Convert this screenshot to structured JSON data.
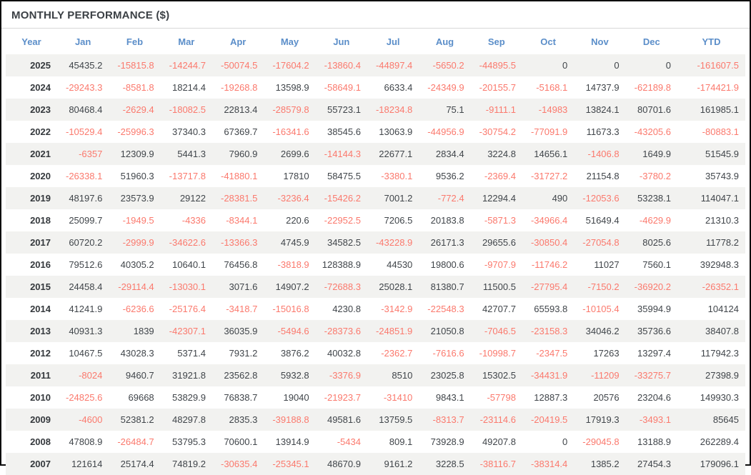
{
  "panel": {
    "title": "MONTHLY PERFORMANCE ($)"
  },
  "colors": {
    "header_blue": "#5b8ec9",
    "negative_red": "#fb796d",
    "value_dark": "#40454a",
    "stripe_gray": "#f2f2f0",
    "title_dark": "#3b4045"
  },
  "table": {
    "columns": [
      "Year",
      "Jan",
      "Feb",
      "Mar",
      "Apr",
      "May",
      "Jun",
      "Jul",
      "Aug",
      "Sep",
      "Oct",
      "Nov",
      "Dec",
      "YTD"
    ],
    "rows": [
      {
        "year": "2025",
        "values": [
          "45435.2",
          "-15815.8",
          "-14244.7",
          "-50074.5",
          "-17604.2",
          "-13860.4",
          "-44897.4",
          "-5650.2",
          "-44895.5",
          "0",
          "0",
          "0",
          "-161607.5"
        ]
      },
      {
        "year": "2024",
        "values": [
          "-29243.3",
          "-8581.8",
          "18214.4",
          "-19268.8",
          "13598.9",
          "-58649.1",
          "6633.4",
          "-24349.9",
          "-20155.7",
          "-5168.1",
          "14737.9",
          "-62189.8",
          "-174421.9"
        ]
      },
      {
        "year": "2023",
        "values": [
          "80468.4",
          "-2629.4",
          "-18082.5",
          "22813.4",
          "-28579.8",
          "55723.1",
          "-18234.8",
          "75.1",
          "-9111.1",
          "-14983",
          "13824.1",
          "80701.6",
          "161985.1"
        ]
      },
      {
        "year": "2022",
        "values": [
          "-10529.4",
          "-25996.3",
          "37340.3",
          "67369.7",
          "-16341.6",
          "38545.6",
          "13063.9",
          "-44956.9",
          "-30754.2",
          "-77091.9",
          "11673.3",
          "-43205.6",
          "-80883.1"
        ]
      },
      {
        "year": "2021",
        "values": [
          "-6357",
          "12309.9",
          "5441.3",
          "7960.9",
          "2699.6",
          "-14144.3",
          "22677.1",
          "2834.4",
          "3224.8",
          "14656.1",
          "-1406.8",
          "1649.9",
          "51545.9"
        ]
      },
      {
        "year": "2020",
        "values": [
          "-26338.1",
          "51960.3",
          "-13717.8",
          "-41880.1",
          "17810",
          "58475.5",
          "-3380.1",
          "9536.2",
          "-2369.4",
          "-31727.2",
          "21154.8",
          "-3780.2",
          "35743.9"
        ]
      },
      {
        "year": "2019",
        "values": [
          "48197.6",
          "23573.9",
          "29122",
          "-28381.5",
          "-3236.4",
          "-15426.2",
          "7001.2",
          "-772.4",
          "12294.4",
          "490",
          "-12053.6",
          "53238.1",
          "114047.1"
        ]
      },
      {
        "year": "2018",
        "values": [
          "25099.7",
          "-1949.5",
          "-4336",
          "-8344.1",
          "220.6",
          "-22952.5",
          "7206.5",
          "20183.8",
          "-5871.3",
          "-34966.4",
          "51649.4",
          "-4629.9",
          "21310.3"
        ]
      },
      {
        "year": "2017",
        "values": [
          "60720.2",
          "-2999.9",
          "-34622.6",
          "-13366.3",
          "4745.9",
          "34582.5",
          "-43228.9",
          "26171.3",
          "29655.6",
          "-30850.4",
          "-27054.8",
          "8025.6",
          "11778.2"
        ]
      },
      {
        "year": "2016",
        "values": [
          "79512.6",
          "40305.2",
          "10640.1",
          "76456.8",
          "-3818.9",
          "128388.9",
          "44530",
          "19800.6",
          "-9707.9",
          "-11746.2",
          "11027",
          "7560.1",
          "392948.3"
        ]
      },
      {
        "year": "2015",
        "values": [
          "24458.4",
          "-29114.4",
          "-13030.1",
          "3071.6",
          "14907.2",
          "-72688.3",
          "25028.1",
          "81380.7",
          "11500.5",
          "-27795.4",
          "-7150.2",
          "-36920.2",
          "-26352.1"
        ]
      },
      {
        "year": "2014",
        "values": [
          "41241.9",
          "-6236.6",
          "-25176.4",
          "-3418.7",
          "-15016.8",
          "4230.8",
          "-3142.9",
          "-22548.3",
          "42707.7",
          "65593.8",
          "-10105.4",
          "35994.9",
          "104124"
        ]
      },
      {
        "year": "2013",
        "values": [
          "40931.3",
          "1839",
          "-42307.1",
          "36035.9",
          "-5494.6",
          "-28373.6",
          "-24851.9",
          "21050.8",
          "-7046.5",
          "-23158.3",
          "34046.2",
          "35736.6",
          "38407.8"
        ]
      },
      {
        "year": "2012",
        "values": [
          "10467.5",
          "43028.3",
          "5371.4",
          "7931.2",
          "3876.2",
          "40032.8",
          "-2362.7",
          "-7616.6",
          "-10998.7",
          "-2347.5",
          "17263",
          "13297.4",
          "117942.3"
        ]
      },
      {
        "year": "2011",
        "values": [
          "-8024",
          "9460.7",
          "31921.8",
          "23562.8",
          "5932.8",
          "-3376.9",
          "8510",
          "23025.8",
          "15302.5",
          "-34431.9",
          "-11209",
          "-33275.7",
          "27398.9"
        ]
      },
      {
        "year": "2010",
        "values": [
          "-24825.6",
          "69668",
          "53829.9",
          "76838.7",
          "19040",
          "-21923.7",
          "-31410",
          "9843.1",
          "-57798",
          "12887.3",
          "20576",
          "23204.6",
          "149930.3"
        ]
      },
      {
        "year": "2009",
        "values": [
          "-4600",
          "52381.2",
          "48297.8",
          "2835.3",
          "-39188.8",
          "49581.6",
          "13759.5",
          "-8313.7",
          "-23114.6",
          "-20419.5",
          "17919.3",
          "-3493.1",
          "85645"
        ]
      },
      {
        "year": "2008",
        "values": [
          "47808.9",
          "-26484.7",
          "53795.3",
          "70600.1",
          "13914.9",
          "-5434",
          "809.1",
          "73928.9",
          "49207.8",
          "0",
          "-29045.8",
          "13188.9",
          "262289.4"
        ]
      },
      {
        "year": "2007",
        "values": [
          "121614",
          "25174.4",
          "74819.2",
          "-30635.4",
          "-25345.1",
          "48670.9",
          "9161.2",
          "3228.5",
          "-38116.7",
          "-38314.4",
          "1385.2",
          "27454.3",
          "179096.1"
        ]
      }
    ]
  }
}
